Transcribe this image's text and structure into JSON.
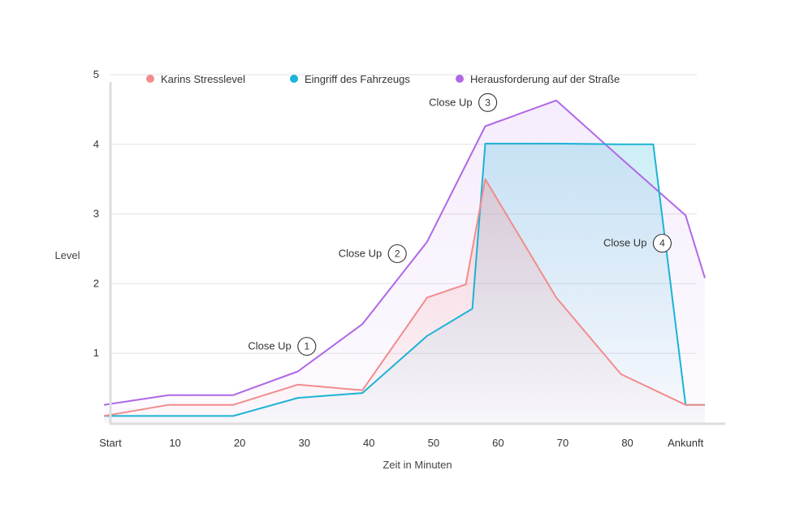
{
  "chart_data": {
    "type": "line",
    "xlabel": "Zeit in Minuten",
    "ylabel": "Level",
    "xlim": [
      0,
      93
    ],
    "ylim": [
      0,
      5
    ],
    "y_ticks": [
      1,
      2,
      3,
      4,
      5
    ],
    "x_ticks": [
      {
        "value": 0,
        "label": "Start"
      },
      {
        "value": 10,
        "label": "10"
      },
      {
        "value": 20,
        "label": "20"
      },
      {
        "value": 30,
        "label": "30"
      },
      {
        "value": 40,
        "label": "40"
      },
      {
        "value": 50,
        "label": "50"
      },
      {
        "value": 60,
        "label": "60"
      },
      {
        "value": 70,
        "label": "70"
      },
      {
        "value": 80,
        "label": "80"
      },
      {
        "value": 89,
        "label": "Ankunft"
      }
    ],
    "grid": true,
    "legend_position": "top",
    "series": [
      {
        "name": "Karins Stresslevel",
        "color": "#F28C8C",
        "x": [
          -1,
          9,
          19,
          29,
          39,
          49,
          55,
          58,
          69,
          79,
          89,
          92
        ],
        "y": [
          0.1,
          0.26,
          0.26,
          0.55,
          0.47,
          1.8,
          1.99,
          3.5,
          1.8,
          0.7,
          0.26,
          0.26
        ]
      },
      {
        "name": "Eingriff des Fahrzeugs",
        "color": "#1BB3D6",
        "x": [
          -1,
          9,
          19,
          29,
          39,
          49,
          56,
          58,
          69,
          79,
          84,
          89,
          92
        ],
        "y": [
          0.1,
          0.1,
          0.1,
          0.36,
          0.43,
          1.25,
          1.64,
          4.01,
          4.01,
          4.0,
          4.0,
          0.26,
          0.26
        ]
      },
      {
        "name": "Herausforderung auf der Straße",
        "color": "#B068E6",
        "x": [
          -1,
          9,
          19,
          29,
          39,
          49,
          58,
          69,
          79,
          89,
          92
        ],
        "y": [
          0.26,
          0.4,
          0.4,
          0.74,
          1.42,
          2.6,
          4.26,
          4.63,
          3.8,
          2.98,
          2.08
        ]
      }
    ],
    "annotations": [
      {
        "text": "Close Up",
        "number": "1",
        "x": 28,
        "y": 1.1
      },
      {
        "text": "Close Up",
        "number": "2",
        "x": 42,
        "y": 2.43
      },
      {
        "text": "Close Up",
        "number": "3",
        "x": 56,
        "y": 4.6
      },
      {
        "text": "Close Up",
        "number": "4",
        "x": 83,
        "y": 2.58
      }
    ]
  }
}
